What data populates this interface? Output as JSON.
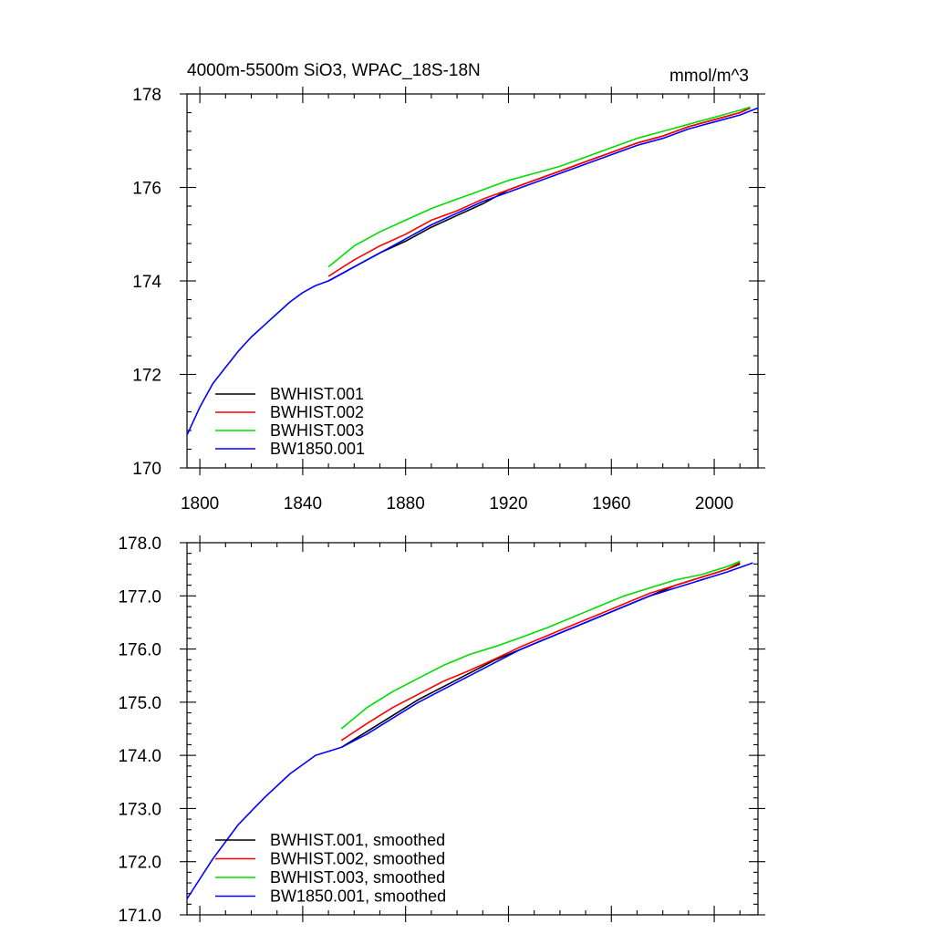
{
  "chart_data": [
    {
      "type": "line",
      "title": "4000m-5500m SiO3, WPAC_18S-18N",
      "units": "mmol/m^3",
      "xlabel": "",
      "ylabel": "",
      "xlim": [
        1795,
        2017
      ],
      "ylim": [
        170,
        178
      ],
      "x_ticks": [
        1800,
        1840,
        1880,
        1920,
        1960,
        2000
      ],
      "x_tick_labels": [
        "1800",
        "1840",
        "1880",
        "1920",
        "1960",
        "2000"
      ],
      "y_ticks": [
        170,
        172,
        174,
        176,
        178
      ],
      "y_tick_labels": [
        "170",
        "172",
        "174",
        "176",
        "178"
      ],
      "legend_position": "bottom-left",
      "series": [
        {
          "name": "BWHIST.001",
          "color": "#000000",
          "x": [
            1850,
            1860,
            1870,
            1880,
            1890,
            1900,
            1910,
            1920,
            1930,
            1940,
            1950,
            1960,
            1970,
            1980,
            1990,
            2000,
            2010,
            2014
          ],
          "y": [
            174.0,
            174.3,
            174.6,
            174.85,
            175.15,
            175.4,
            175.65,
            175.95,
            176.15,
            176.35,
            176.55,
            176.75,
            176.95,
            177.1,
            177.3,
            177.45,
            177.6,
            177.7
          ]
        },
        {
          "name": "BWHIST.002",
          "color": "#ff0000",
          "x": [
            1850,
            1860,
            1870,
            1880,
            1890,
            1900,
            1910,
            1920,
            1930,
            1940,
            1950,
            1960,
            1970,
            1980,
            1990,
            2000,
            2010,
            2014
          ],
          "y": [
            174.1,
            174.45,
            174.75,
            175.0,
            175.3,
            175.5,
            175.75,
            175.95,
            176.15,
            176.35,
            176.55,
            176.75,
            176.95,
            177.1,
            177.3,
            177.45,
            177.6,
            177.7
          ]
        },
        {
          "name": "BWHIST.003",
          "color": "#00dd00",
          "x": [
            1850,
            1860,
            1870,
            1880,
            1890,
            1900,
            1910,
            1920,
            1930,
            1940,
            1950,
            1960,
            1970,
            1980,
            1990,
            2000,
            2010,
            2014
          ],
          "y": [
            174.3,
            174.75,
            175.05,
            175.3,
            175.55,
            175.75,
            175.95,
            176.15,
            176.3,
            176.45,
            176.65,
            176.85,
            177.05,
            177.2,
            177.35,
            177.5,
            177.65,
            177.72
          ]
        },
        {
          "name": "BW1850.001",
          "color": "#0000ff",
          "x": [
            1795,
            1800,
            1805,
            1810,
            1815,
            1820,
            1825,
            1830,
            1835,
            1840,
            1845,
            1850,
            1855,
            1860,
            1870,
            1880,
            1890,
            1900,
            1910,
            1920,
            1930,
            1940,
            1950,
            1960,
            1970,
            1980,
            1990,
            2000,
            2010,
            2017
          ],
          "y": [
            170.7,
            171.3,
            171.8,
            172.15,
            172.5,
            172.8,
            173.05,
            173.3,
            173.55,
            173.75,
            173.9,
            174.0,
            174.15,
            174.3,
            174.6,
            174.9,
            175.2,
            175.45,
            175.7,
            175.9,
            176.1,
            176.3,
            176.5,
            176.7,
            176.9,
            177.05,
            177.25,
            177.4,
            177.55,
            177.7
          ]
        }
      ]
    },
    {
      "type": "line",
      "title": "",
      "xlabel": "",
      "ylabel": "",
      "xlim": [
        1795,
        2017
      ],
      "ylim": [
        171,
        178
      ],
      "x_ticks": [
        1800,
        1840,
        1880,
        1920,
        1960,
        2000
      ],
      "y_ticks": [
        171,
        172,
        173,
        174,
        175,
        176,
        177,
        178
      ],
      "y_tick_labels": [
        "171.0",
        "172.0",
        "173.0",
        "174.0",
        "175.0",
        "176.0",
        "177.0",
        "178.0"
      ],
      "legend_position": "bottom-left",
      "series": [
        {
          "name": "BWHIST.001, smoothed",
          "color": "#000000",
          "x": [
            1855,
            1865,
            1875,
            1885,
            1895,
            1905,
            1915,
            1925,
            1935,
            1945,
            1955,
            1965,
            1975,
            1985,
            1995,
            2005,
            2010
          ],
          "y": [
            174.15,
            174.45,
            174.75,
            175.05,
            175.3,
            175.55,
            175.8,
            176.0,
            176.2,
            176.4,
            176.6,
            176.8,
            177.0,
            177.2,
            177.35,
            177.5,
            177.6
          ]
        },
        {
          "name": "BWHIST.002, smoothed",
          "color": "#ff0000",
          "x": [
            1855,
            1865,
            1875,
            1885,
            1895,
            1905,
            1915,
            1925,
            1935,
            1945,
            1955,
            1965,
            1975,
            1985,
            1995,
            2005,
            2010
          ],
          "y": [
            174.28,
            174.6,
            174.9,
            175.15,
            175.4,
            175.6,
            175.82,
            176.05,
            176.25,
            176.45,
            176.65,
            176.85,
            177.05,
            177.2,
            177.35,
            177.5,
            177.63
          ]
        },
        {
          "name": "BWHIST.003, smoothed",
          "color": "#00dd00",
          "x": [
            1855,
            1865,
            1875,
            1885,
            1895,
            1905,
            1915,
            1925,
            1935,
            1945,
            1955,
            1965,
            1975,
            1985,
            1995,
            2005,
            2010
          ],
          "y": [
            174.5,
            174.9,
            175.2,
            175.45,
            175.7,
            175.9,
            176.05,
            176.22,
            176.4,
            176.6,
            176.8,
            177.0,
            177.15,
            177.3,
            177.4,
            177.55,
            177.65
          ]
        },
        {
          "name": "BW1850.001, smoothed",
          "color": "#0000ff",
          "x": [
            1795,
            1805,
            1815,
            1825,
            1835,
            1845,
            1855,
            1865,
            1875,
            1885,
            1895,
            1905,
            1915,
            1925,
            1935,
            1945,
            1955,
            1965,
            1975,
            1985,
            1995,
            2005,
            2015
          ],
          "y": [
            171.3,
            172.05,
            172.7,
            173.2,
            173.65,
            174.0,
            174.15,
            174.4,
            174.7,
            175.0,
            175.25,
            175.5,
            175.75,
            176.0,
            176.2,
            176.4,
            176.6,
            176.8,
            177.0,
            177.15,
            177.3,
            177.45,
            177.62
          ]
        }
      ]
    }
  ]
}
